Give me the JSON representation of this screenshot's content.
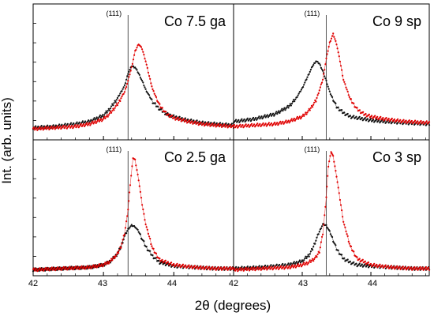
{
  "figure": {
    "ylabel": "Int. (arb. units)",
    "xlabel": "2θ (degrees)",
    "peak_marker_label": "(111)",
    "xticks": [
      "42",
      "43",
      "44",
      "42",
      "43",
      "44"
    ],
    "colors": {
      "black_series": "#111111",
      "red_series": "#e00000",
      "frame": "#000000",
      "marker": "#555555"
    }
  },
  "chart_data": [
    {
      "type": "scatter",
      "title": "Co 7.5 ga",
      "annotation": "(111)",
      "xlim": [
        42,
        44.85
      ],
      "xticks": [
        42,
        43,
        44
      ],
      "marker_x": 43.35,
      "series": [
        {
          "color": "#111111",
          "x": [
            42.0,
            42.3,
            42.6,
            42.8,
            43.0,
            43.1,
            43.2,
            43.3,
            43.35,
            43.4,
            43.45,
            43.5,
            43.55,
            43.6,
            43.7,
            43.8,
            43.9,
            44.0,
            44.2,
            44.4,
            44.6,
            44.85
          ],
          "y": [
            0.06,
            0.07,
            0.09,
            0.11,
            0.16,
            0.22,
            0.3,
            0.4,
            0.5,
            0.56,
            0.55,
            0.5,
            0.44,
            0.37,
            0.27,
            0.21,
            0.17,
            0.15,
            0.12,
            0.1,
            0.09,
            0.08
          ]
        },
        {
          "color": "#e00000",
          "x": [
            42.0,
            42.3,
            42.6,
            42.8,
            43.0,
            43.1,
            43.2,
            43.3,
            43.35,
            43.4,
            43.45,
            43.5,
            43.55,
            43.6,
            43.65,
            43.7,
            43.8,
            43.9,
            44.0,
            44.2,
            44.4,
            44.6,
            44.85
          ],
          "y": [
            0.05,
            0.06,
            0.07,
            0.09,
            0.13,
            0.18,
            0.25,
            0.35,
            0.44,
            0.55,
            0.68,
            0.74,
            0.7,
            0.6,
            0.48,
            0.37,
            0.24,
            0.17,
            0.14,
            0.11,
            0.09,
            0.08,
            0.07
          ]
        }
      ]
    },
    {
      "type": "scatter",
      "title": "Co 9 sp",
      "annotation": "(111)",
      "xlim": [
        42,
        44.85
      ],
      "xticks": [
        42,
        43,
        44
      ],
      "marker_x": 43.35,
      "series": [
        {
          "color": "#111111",
          "x": [
            42.0,
            42.3,
            42.6,
            42.8,
            42.9,
            43.0,
            43.1,
            43.15,
            43.2,
            43.25,
            43.3,
            43.35,
            43.4,
            43.5,
            43.6,
            43.7,
            43.8,
            44.0,
            44.2,
            44.5,
            44.85
          ],
          "y": [
            0.11,
            0.13,
            0.17,
            0.23,
            0.29,
            0.38,
            0.5,
            0.56,
            0.6,
            0.58,
            0.52,
            0.44,
            0.35,
            0.23,
            0.18,
            0.15,
            0.14,
            0.12,
            0.11,
            0.1,
            0.09
          ]
        },
        {
          "color": "#e00000",
          "x": [
            42.0,
            42.3,
            42.6,
            42.8,
            43.0,
            43.1,
            43.2,
            43.3,
            43.35,
            43.4,
            43.45,
            43.5,
            43.55,
            43.6,
            43.7,
            43.8,
            43.9,
            44.0,
            44.2,
            44.5,
            44.85
          ],
          "y": [
            0.07,
            0.08,
            0.09,
            0.11,
            0.15,
            0.2,
            0.28,
            0.45,
            0.62,
            0.75,
            0.82,
            0.74,
            0.6,
            0.45,
            0.29,
            0.21,
            0.17,
            0.15,
            0.13,
            0.11,
            0.1
          ]
        }
      ]
    },
    {
      "type": "scatter",
      "title": "Co 2.5 ga",
      "annotation": "(111)",
      "xlim": [
        42,
        44.85
      ],
      "xticks": [
        42,
        43,
        44
      ],
      "marker_x": 43.35,
      "series": [
        {
          "color": "#111111",
          "x": [
            42.0,
            42.4,
            42.8,
            43.0,
            43.1,
            43.2,
            43.25,
            43.3,
            43.35,
            43.4,
            43.45,
            43.5,
            43.55,
            43.6,
            43.7,
            43.8,
            44.0,
            44.3,
            44.6,
            44.85
          ],
          "y": [
            0.01,
            0.02,
            0.03,
            0.05,
            0.08,
            0.14,
            0.2,
            0.28,
            0.34,
            0.37,
            0.36,
            0.32,
            0.26,
            0.2,
            0.12,
            0.07,
            0.04,
            0.03,
            0.02,
            0.02
          ]
        },
        {
          "color": "#e00000",
          "x": [
            42.0,
            42.4,
            42.8,
            43.0,
            43.1,
            43.2,
            43.25,
            43.3,
            43.35,
            43.38,
            43.42,
            43.45,
            43.5,
            43.55,
            43.6,
            43.7,
            43.8,
            44.0,
            44.3,
            44.6,
            44.85
          ],
          "y": [
            0.01,
            0.02,
            0.03,
            0.05,
            0.08,
            0.14,
            0.2,
            0.3,
            0.5,
            0.7,
            0.92,
            0.9,
            0.74,
            0.54,
            0.38,
            0.18,
            0.09,
            0.05,
            0.03,
            0.02,
            0.02
          ]
        }
      ]
    },
    {
      "type": "scatter",
      "title": "Co 3 sp",
      "annotation": "(111)",
      "xlim": [
        42,
        44.85
      ],
      "xticks": [
        42,
        43,
        44
      ],
      "marker_x": 43.35,
      "series": [
        {
          "color": "#111111",
          "x": [
            42.0,
            42.4,
            42.8,
            43.0,
            43.1,
            43.15,
            43.2,
            43.25,
            43.3,
            43.35,
            43.4,
            43.45,
            43.5,
            43.6,
            43.7,
            43.8,
            44.0,
            44.3,
            44.6,
            44.85
          ],
          "y": [
            0.02,
            0.03,
            0.05,
            0.08,
            0.13,
            0.18,
            0.25,
            0.32,
            0.38,
            0.37,
            0.32,
            0.25,
            0.18,
            0.1,
            0.07,
            0.05,
            0.04,
            0.03,
            0.02,
            0.02
          ]
        },
        {
          "color": "#e00000",
          "x": [
            42.0,
            42.4,
            42.8,
            43.0,
            43.1,
            43.2,
            43.25,
            43.3,
            43.35,
            43.38,
            43.42,
            43.45,
            43.5,
            43.55,
            43.6,
            43.7,
            43.8,
            44.0,
            44.3,
            44.6,
            44.85
          ],
          "y": [
            0.01,
            0.02,
            0.03,
            0.05,
            0.07,
            0.11,
            0.16,
            0.3,
            0.6,
            0.85,
            0.97,
            0.93,
            0.77,
            0.58,
            0.4,
            0.2,
            0.1,
            0.05,
            0.03,
            0.02,
            0.02
          ]
        }
      ]
    }
  ]
}
